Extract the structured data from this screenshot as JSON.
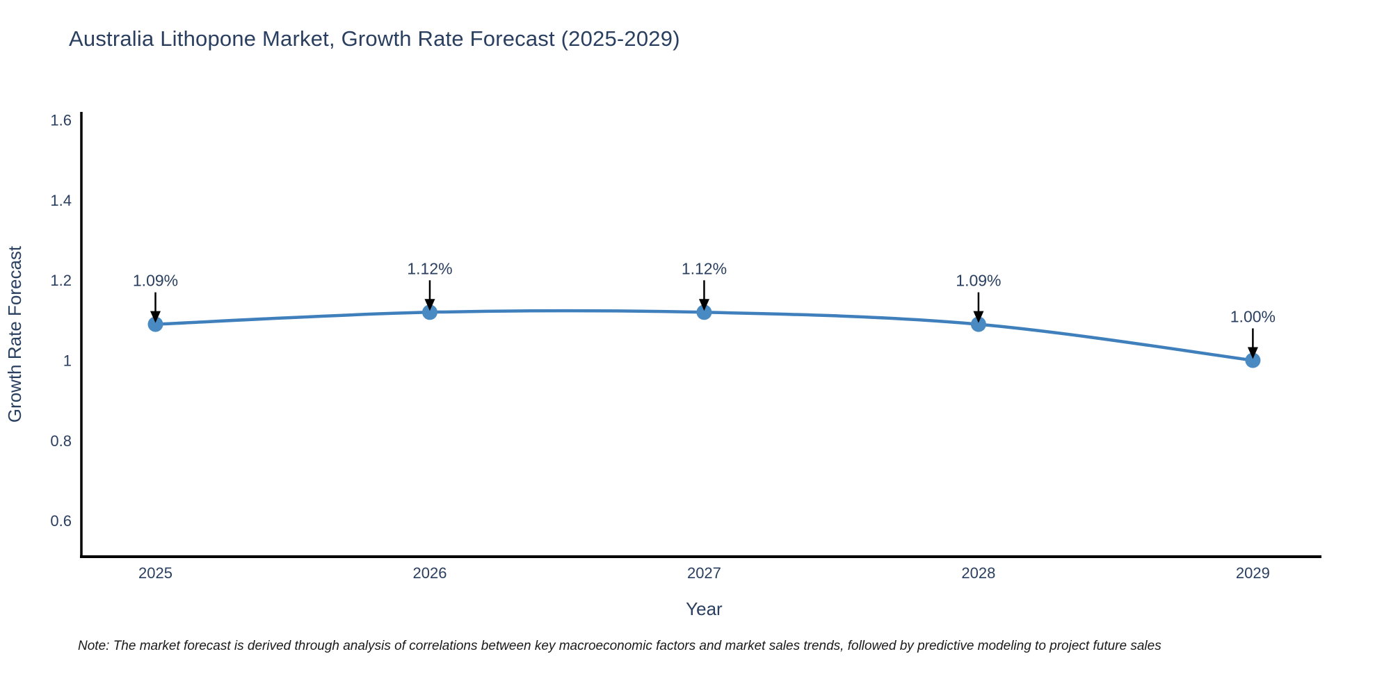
{
  "footnote": {
    "text": "Note: The market forecast is derived through analysis of correlations between key macroeconomic factors and market sales trends, followed by predictive modeling to project future sales"
  },
  "chart_data": {
    "type": "line",
    "title": "Australia Lithopone Market, Growth Rate Forecast (2025-2029)",
    "x": [
      2025,
      2026,
      2027,
      2028,
      2029
    ],
    "x_labels": [
      "2025",
      "2026",
      "2027",
      "2028",
      "2029"
    ],
    "series": [
      {
        "name": "Growth Rate Forecast",
        "values": [
          1.09,
          1.12,
          1.12,
          1.09,
          1.0
        ]
      }
    ],
    "point_labels": [
      "1.09%",
      "1.12%",
      "1.12%",
      "1.09%",
      "1.00%"
    ],
    "xlabel": "Year",
    "ylabel": "Growth Rate Forecast",
    "yticks": [
      {
        "value": 0.6,
        "label": "0.6"
      },
      {
        "value": 0.8,
        "label": "0.8"
      },
      {
        "value": 1.0,
        "label": "1"
      },
      {
        "value": 1.2,
        "label": "1.2"
      },
      {
        "value": 1.4,
        "label": "1.4"
      },
      {
        "value": 1.6,
        "label": "1.6"
      }
    ],
    "xlim": [
      2024.73,
      2029.25
    ],
    "ylim": [
      0.51,
      1.62
    ],
    "grid": false,
    "legend": null,
    "line_shape": "spline",
    "colors": {
      "line": "#3f7fbc",
      "marker": "#4a8ac2",
      "arrow": "#000000",
      "tick_text": "#2a3f5f",
      "annotation_text": "#2a3f5f",
      "axis_title_text": "#2a3f5f",
      "axis_line": "#000000"
    }
  }
}
